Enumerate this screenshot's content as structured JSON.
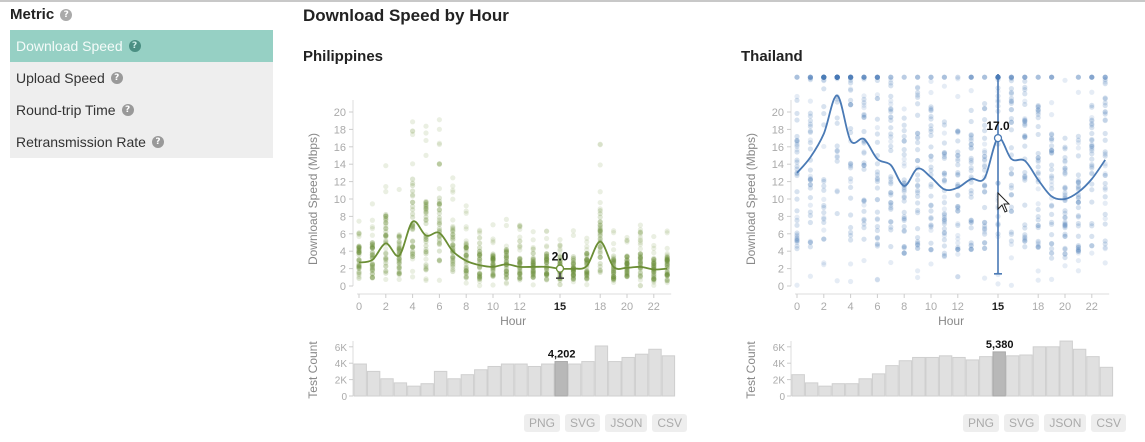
{
  "sidebar": {
    "title": "Metric",
    "items": [
      {
        "label": "Download Speed",
        "active": true
      },
      {
        "label": "Upload Speed",
        "active": false
      },
      {
        "label": "Round-trip Time",
        "active": false
      },
      {
        "label": "Retransmission Rate",
        "active": false
      }
    ],
    "help_glyph": "?"
  },
  "page_title": "Download Speed by Hour",
  "export_buttons": [
    "PNG",
    "SVG",
    "JSON",
    "CSV"
  ],
  "colors": {
    "philippines": "#6b8e35",
    "thailand": "#4a7ab5",
    "bar": "#e0e0e0",
    "bar_highlight": "#b8b8b8",
    "accent": "#96d0c4"
  },
  "chart_data": [
    {
      "type": "scatter+line",
      "title": "Philippines",
      "xlabel": "Hour",
      "ylabel": "Download Speed (Mbps)",
      "ylim": [
        0,
        21
      ],
      "yticks": [
        0,
        2,
        4,
        6,
        8,
        10,
        12,
        14,
        16,
        18,
        20
      ],
      "xticks": [
        0,
        2,
        4,
        6,
        8,
        10,
        12,
        15,
        18,
        20,
        22
      ],
      "highlight_hour": 15,
      "highlight_value": "2.0",
      "x": [
        0,
        1,
        2,
        3,
        4,
        5,
        6,
        7,
        8,
        9,
        10,
        11,
        12,
        13,
        14,
        15,
        16,
        17,
        18,
        19,
        20,
        21,
        22,
        23
      ],
      "median": [
        2.7,
        3.0,
        4.9,
        3.5,
        7.4,
        5.8,
        6.1,
        4.0,
        2.9,
        2.4,
        2.2,
        2.5,
        2.2,
        2.2,
        2.2,
        2.0,
        2.0,
        2.3,
        5.1,
        2.2,
        2.1,
        2.2,
        1.9,
        2.0
      ],
      "histogram": {
        "ylabel": "Test Count",
        "yticks": [
          "0",
          "2K",
          "4K",
          "6K"
        ],
        "values": [
          3900,
          3000,
          2100,
          1600,
          1200,
          1500,
          3000,
          2100,
          2600,
          3200,
          3600,
          3900,
          3900,
          3600,
          3900,
          4202,
          3900,
          4200,
          6100,
          4200,
          4700,
          5100,
          5700,
          4900
        ],
        "highlight_label": "4,202"
      }
    },
    {
      "type": "scatter+line",
      "title": "Thailand",
      "xlabel": "Hour",
      "ylabel": "Download Speed (Mbps)",
      "ylim": [
        0,
        21
      ],
      "yticks": [
        0,
        2,
        4,
        6,
        8,
        10,
        12,
        14,
        16,
        18,
        20
      ],
      "xticks": [
        0,
        2,
        4,
        6,
        8,
        10,
        12,
        15,
        18,
        20,
        22
      ],
      "highlight_hour": 15,
      "highlight_value": "17.0",
      "x": [
        0,
        1,
        2,
        3,
        4,
        5,
        6,
        7,
        8,
        9,
        10,
        11,
        12,
        13,
        14,
        15,
        16,
        17,
        18,
        19,
        20,
        21,
        22,
        23
      ],
      "median": [
        13.0,
        14.8,
        17.5,
        21.9,
        16.7,
        16.9,
        14.6,
        13.9,
        11.5,
        13.5,
        12.5,
        11.1,
        11.3,
        12.3,
        12.4,
        17.0,
        14.6,
        14.4,
        12.2,
        10.3,
        10.0,
        10.8,
        12.3,
        14.5
      ],
      "histogram": {
        "ylabel": "Test Count",
        "yticks": [
          "0",
          "2K",
          "4K",
          "6K"
        ],
        "values": [
          2600,
          1600,
          1200,
          1500,
          1500,
          2100,
          2700,
          3700,
          4300,
          4700,
          4700,
          4900,
          4700,
          4400,
          4800,
          5380,
          4900,
          5000,
          6000,
          6000,
          6700,
          5700,
          4800,
          3500
        ],
        "highlight_label": "5,380"
      }
    }
  ]
}
